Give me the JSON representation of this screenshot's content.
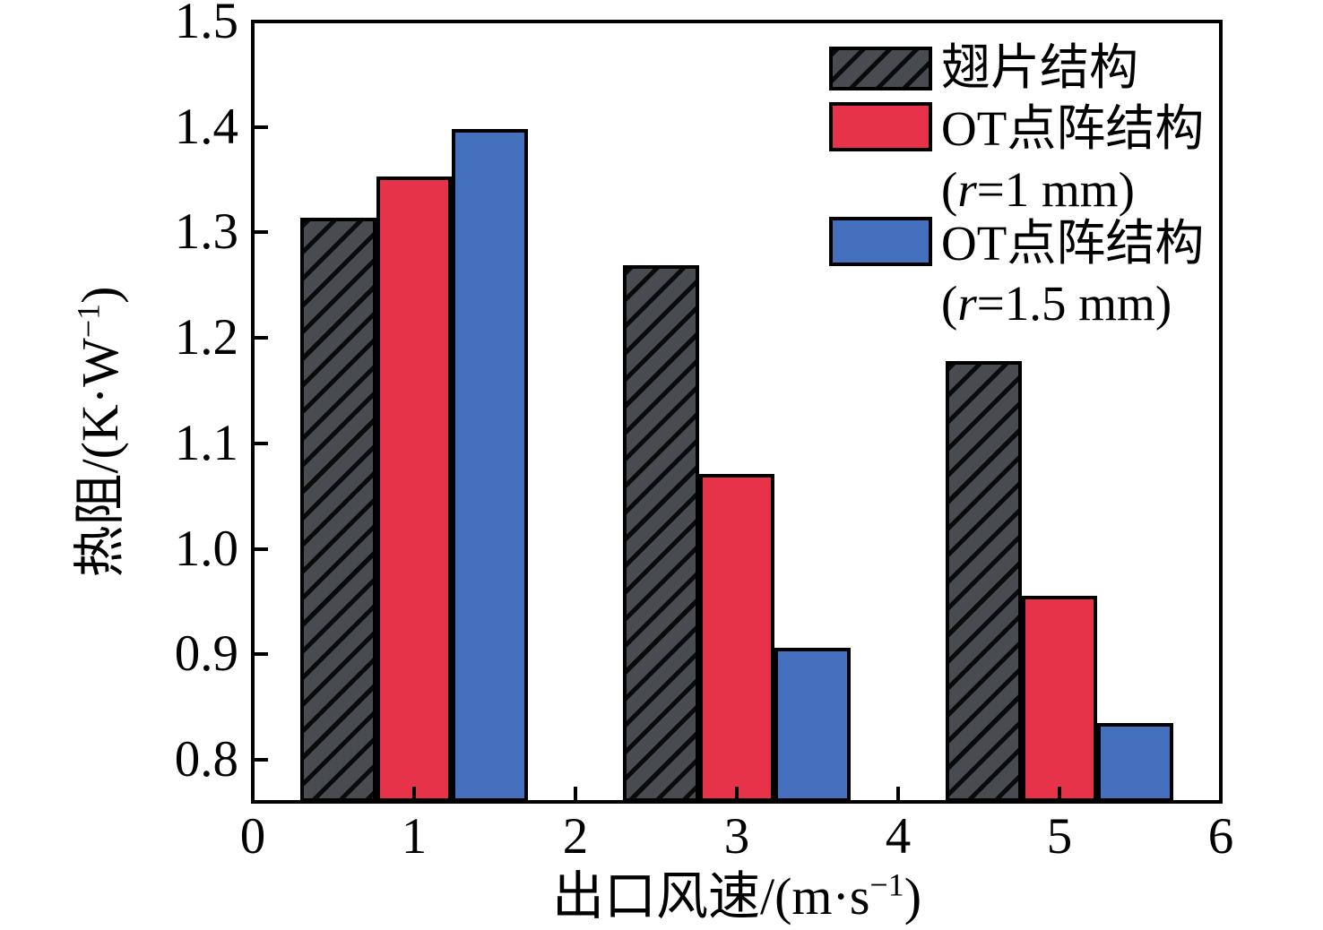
{
  "chart_data": {
    "type": "bar",
    "title": "",
    "xlabel_parts": {
      "pre": "出口风速/(m·s",
      "sup": "−1",
      "post": ")"
    },
    "ylabel_parts": {
      "pre": "热阻/(K·W",
      "sup": "−1",
      "post": ")"
    },
    "x_categories": [
      1,
      3,
      5
    ],
    "xlim": [
      0,
      6
    ],
    "ylim": [
      0.76,
      1.5
    ],
    "xticks": [
      "0",
      "1",
      "2",
      "3",
      "4",
      "5",
      "6"
    ],
    "yticks": [
      "1.5",
      "1.4",
      "1.3",
      "1.2",
      "1.1",
      "1.0",
      "0.9",
      "0.8"
    ],
    "grid": false,
    "legend_position": "top-right-inside",
    "bar_width_units": 0.472,
    "axis_color": "#000000",
    "background_color": "#ffffff",
    "series": [
      {
        "name": "翅片结构",
        "color": "#484b4f",
        "edge_color": "#000000",
        "hatch": "/",
        "values": [
          1.314,
          1.269,
          1.178
        ]
      },
      {
        "name": "OT点阵结构",
        "sub_pre": "(",
        "sub_var": "r",
        "sub_rest": "=1 mm)",
        "color": "#e73349",
        "edge_color": "#000000",
        "hatch": null,
        "values": [
          1.353,
          1.071,
          0.955
        ]
      },
      {
        "name": "OT点阵结构",
        "sub_pre": "(",
        "sub_var": "r",
        "sub_rest": "=1.5 mm)",
        "color": "#4470bd",
        "edge_color": "#000000",
        "hatch": null,
        "values": [
          1.398,
          0.906,
          0.835
        ]
      }
    ]
  }
}
